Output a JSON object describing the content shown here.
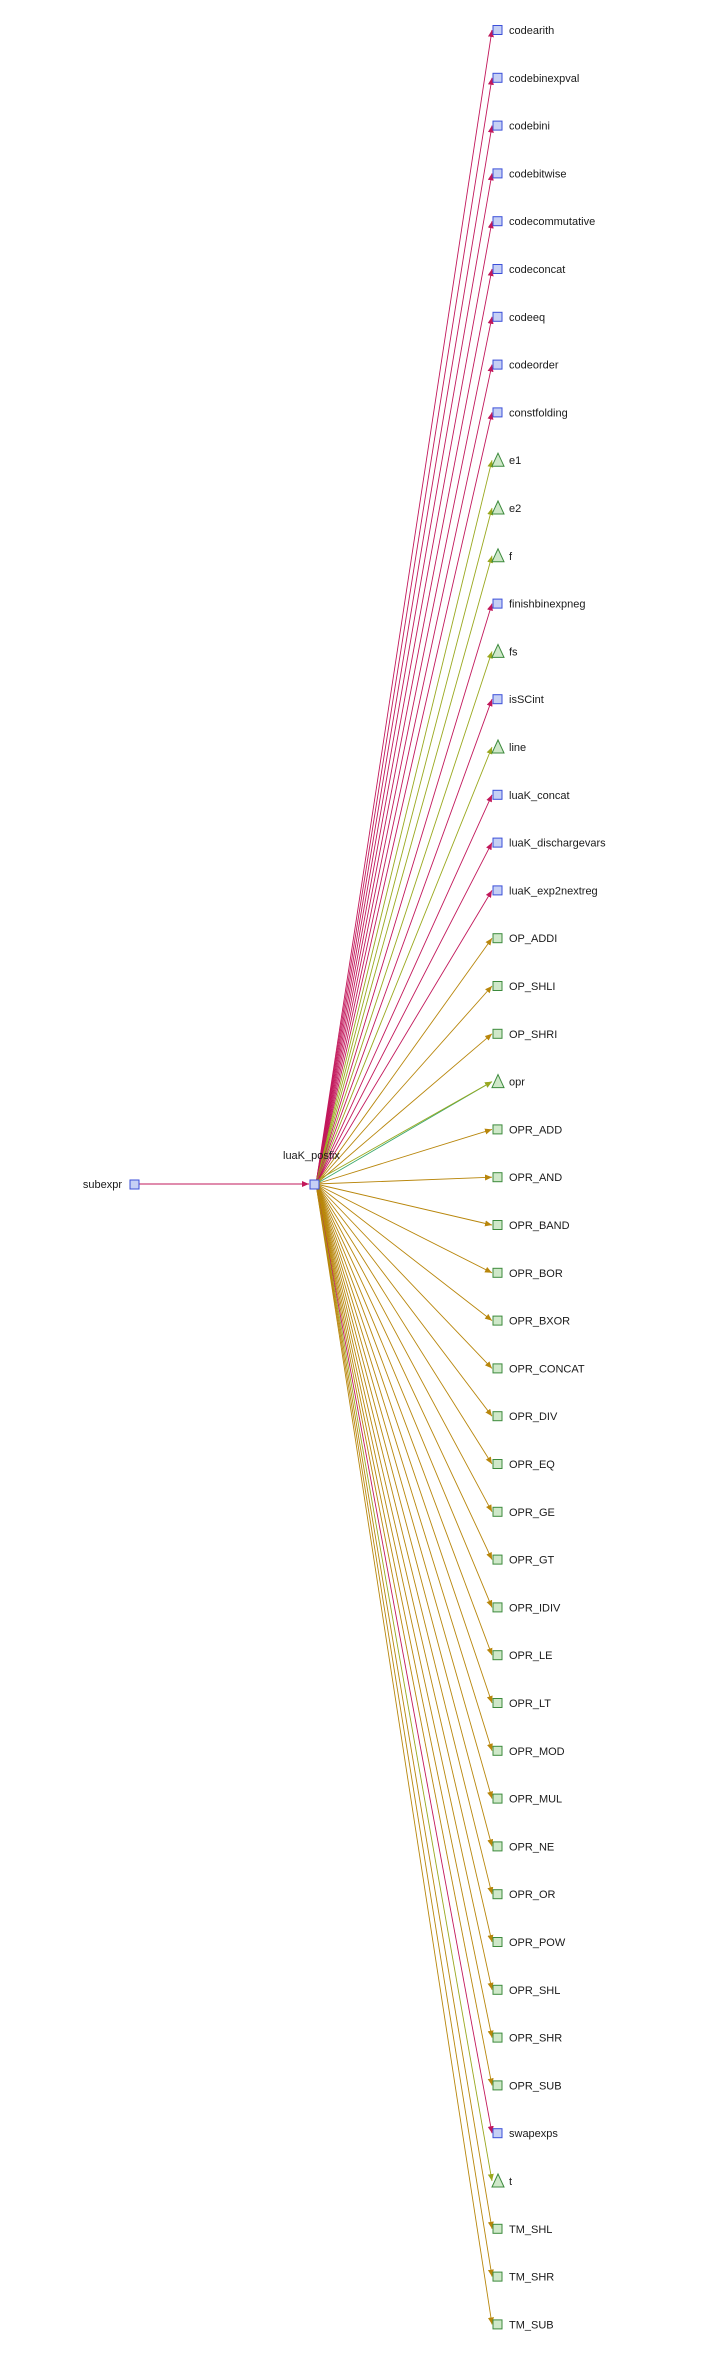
{
  "graph": {
    "source": {
      "label": "subexpr",
      "shape": "square"
    },
    "center": {
      "label": "luaK_posfix",
      "shape": "square"
    },
    "targets": [
      {
        "label": "codearith",
        "shape": "square",
        "kind": "function"
      },
      {
        "label": "codebinexpval",
        "shape": "square",
        "kind": "function"
      },
      {
        "label": "codebini",
        "shape": "square",
        "kind": "function"
      },
      {
        "label": "codebitwise",
        "shape": "square",
        "kind": "function"
      },
      {
        "label": "codecommutative",
        "shape": "square",
        "kind": "function"
      },
      {
        "label": "codeconcat",
        "shape": "square",
        "kind": "function"
      },
      {
        "label": "codeeq",
        "shape": "square",
        "kind": "function"
      },
      {
        "label": "codeorder",
        "shape": "square",
        "kind": "function"
      },
      {
        "label": "constfolding",
        "shape": "square",
        "kind": "function"
      },
      {
        "label": "e1",
        "shape": "triangle",
        "kind": "param"
      },
      {
        "label": "e2",
        "shape": "triangle",
        "kind": "param"
      },
      {
        "label": "f",
        "shape": "triangle",
        "kind": "param"
      },
      {
        "label": "finishbinexpneg",
        "shape": "square",
        "kind": "function"
      },
      {
        "label": "fs",
        "shape": "triangle",
        "kind": "param"
      },
      {
        "label": "isSCint",
        "shape": "square",
        "kind": "function"
      },
      {
        "label": "line",
        "shape": "triangle",
        "kind": "param"
      },
      {
        "label": "luaK_concat",
        "shape": "square",
        "kind": "function"
      },
      {
        "label": "luaK_dischargevars",
        "shape": "square",
        "kind": "function"
      },
      {
        "label": "luaK_exp2nextreg",
        "shape": "square",
        "kind": "function"
      },
      {
        "label": "OP_ADDI",
        "shape": "square",
        "kind": "constant"
      },
      {
        "label": "OP_SHLI",
        "shape": "square",
        "kind": "constant"
      },
      {
        "label": "OP_SHRI",
        "shape": "square",
        "kind": "constant"
      },
      {
        "label": "opr",
        "shape": "triangle",
        "kind": "param"
      },
      {
        "label": "OPR_ADD",
        "shape": "square",
        "kind": "constant"
      },
      {
        "label": "OPR_AND",
        "shape": "square",
        "kind": "constant"
      },
      {
        "label": "OPR_BAND",
        "shape": "square",
        "kind": "constant"
      },
      {
        "label": "OPR_BOR",
        "shape": "square",
        "kind": "constant"
      },
      {
        "label": "OPR_BXOR",
        "shape": "square",
        "kind": "constant"
      },
      {
        "label": "OPR_CONCAT",
        "shape": "square",
        "kind": "constant"
      },
      {
        "label": "OPR_DIV",
        "shape": "square",
        "kind": "constant"
      },
      {
        "label": "OPR_EQ",
        "shape": "square",
        "kind": "constant"
      },
      {
        "label": "OPR_GE",
        "shape": "square",
        "kind": "constant"
      },
      {
        "label": "OPR_GT",
        "shape": "square",
        "kind": "constant"
      },
      {
        "label": "OPR_IDIV",
        "shape": "square",
        "kind": "constant"
      },
      {
        "label": "OPR_LE",
        "shape": "square",
        "kind": "constant"
      },
      {
        "label": "OPR_LT",
        "shape": "square",
        "kind": "constant"
      },
      {
        "label": "OPR_MOD",
        "shape": "square",
        "kind": "constant"
      },
      {
        "label": "OPR_MUL",
        "shape": "square",
        "kind": "constant"
      },
      {
        "label": "OPR_NE",
        "shape": "square",
        "kind": "constant"
      },
      {
        "label": "OPR_OR",
        "shape": "square",
        "kind": "constant"
      },
      {
        "label": "OPR_POW",
        "shape": "square",
        "kind": "constant"
      },
      {
        "label": "OPR_SHL",
        "shape": "square",
        "kind": "constant"
      },
      {
        "label": "OPR_SHR",
        "shape": "square",
        "kind": "constant"
      },
      {
        "label": "OPR_SUB",
        "shape": "square",
        "kind": "constant"
      },
      {
        "label": "swapexps",
        "shape": "square",
        "kind": "function"
      },
      {
        "label": "t",
        "shape": "triangle",
        "kind": "param"
      },
      {
        "label": "TM_SHL",
        "shape": "square",
        "kind": "constant"
      },
      {
        "label": "TM_SHR",
        "shape": "square",
        "kind": "constant"
      },
      {
        "label": "TM_SUB",
        "shape": "square",
        "kind": "constant"
      }
    ]
  },
  "colors": {
    "function_fill": "#c6d0f5",
    "function_stroke": "#3b4fd8",
    "constant_fill": "#cfe8c9",
    "constant_stroke": "#3c8a3c",
    "param_fill": "#cfe8c9",
    "param_stroke": "#3c8a3c",
    "edge_function": "#c2185b",
    "edge_constant": "#b8860b",
    "edge_param_a": "#9aa81e",
    "edge_param_b": "#3aa86a",
    "edge_source": "#c2185b"
  }
}
